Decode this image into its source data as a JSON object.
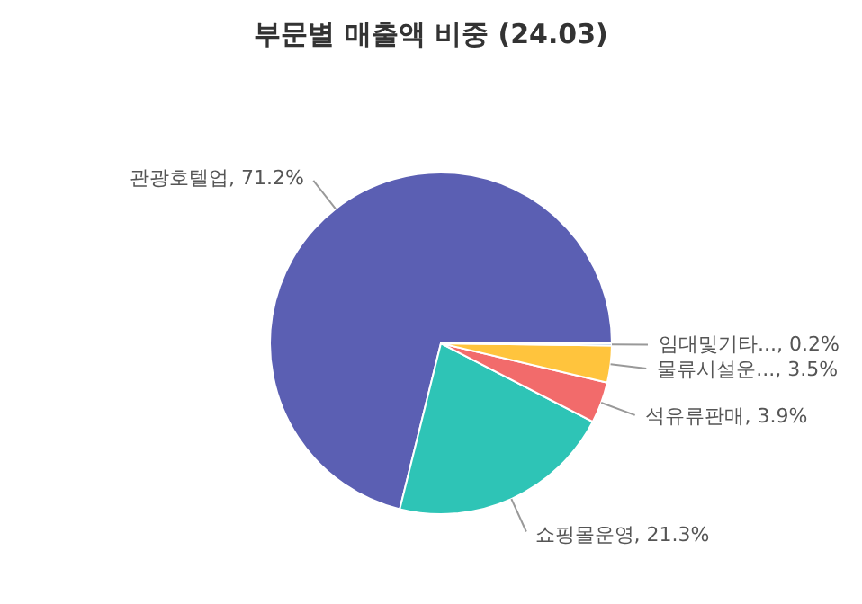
{
  "chart_data": {
    "type": "pie",
    "title": "부문별 매출액 비중 (24.03)",
    "categories": [
      "관광호텔업",
      "쇼핑몰운영",
      "석유류판매",
      "물류시설운...",
      "임대및기타..."
    ],
    "values": [
      71.2,
      21.3,
      3.9,
      3.5,
      0.2
    ],
    "value_labels": [
      "71.2%",
      "21.3%",
      "3.9%",
      "3.5%",
      "0.2%"
    ],
    "colors": [
      "#5b5fb3",
      "#2ec4b6",
      "#f26b6b",
      "#ffc43d",
      "#8fb8de"
    ],
    "legend": false
  }
}
